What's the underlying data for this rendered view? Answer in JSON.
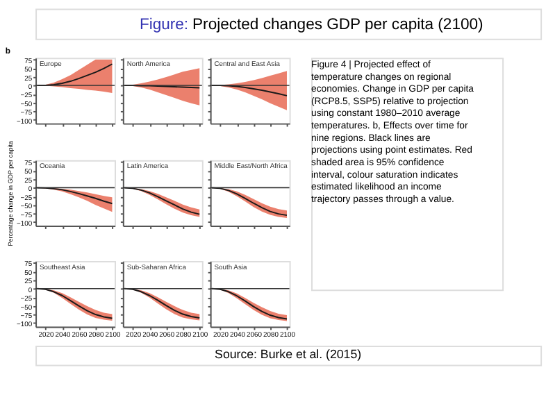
{
  "chart_data": [
    {
      "type": "other",
      "title": "Figure: Projected changes GDP per capita (2100)"
    },
    {
      "type": "line",
      "title": "Europe",
      "annotations": [
        "b"
      ],
      "x": [
        2010,
        2020,
        2030,
        2040,
        2050,
        2060,
        2070,
        2080,
        2090,
        2100
      ],
      "xlim": [
        2008,
        2103
      ],
      "xticks": [
        2020,
        2040,
        2060,
        2080,
        2100
      ],
      "ylim": [
        -110,
        80
      ],
      "yticks": [
        75,
        50,
        25,
        0,
        -25,
        -50,
        -75,
        -100
      ],
      "tick_labels": "y",
      "ref_lines": [
        {
          "axis": "y",
          "value": 0,
          "color": "#333333"
        }
      ],
      "series": [
        {
          "color": "#1a1a1a",
          "values": [
            0,
            0,
            2,
            6,
            12,
            20,
            29,
            38,
            49,
            62
          ],
          "lower": [
            0,
            -1,
            -3,
            -5,
            -8,
            -10,
            -13,
            -15,
            -18,
            -22
          ],
          "upper": [
            0,
            2,
            8,
            18,
            30,
            45,
            60,
            75,
            75,
            75
          ]
        }
      ]
    },
    {
      "type": "line",
      "title": "North America",
      "x": [
        2010,
        2020,
        2030,
        2040,
        2050,
        2060,
        2070,
        2080,
        2090,
        2100
      ],
      "xlim": [
        2008,
        2103
      ],
      "xticks": [
        2020,
        2040,
        2060,
        2080,
        2100
      ],
      "ylim": [
        -110,
        80
      ],
      "yticks": [
        75,
        50,
        25,
        0,
        -25,
        -50,
        -75,
        -100
      ],
      "tick_labels": false,
      "ref_lines": [
        {
          "axis": "y",
          "value": 0,
          "color": "#333333"
        }
      ],
      "series": [
        {
          "color": "#1a1a1a",
          "values": [
            0,
            0,
            -1,
            -1,
            -2,
            -3,
            -4,
            -5,
            -6,
            -7
          ],
          "lower": [
            0,
            -2,
            -6,
            -12,
            -20,
            -28,
            -36,
            -45,
            -52,
            -58
          ],
          "upper": [
            0,
            2,
            6,
            11,
            17,
            24,
            32,
            40,
            45,
            50
          ]
        }
      ]
    },
    {
      "type": "line",
      "title": "Central and East Asia",
      "x": [
        2010,
        2020,
        2030,
        2040,
        2050,
        2060,
        2070,
        2080,
        2090,
        2100
      ],
      "xlim": [
        2008,
        2103
      ],
      "xticks": [
        2020,
        2040,
        2060,
        2080,
        2100
      ],
      "ylim": [
        -110,
        80
      ],
      "yticks": [
        75,
        50,
        25,
        0,
        -25,
        -50,
        -75,
        -100
      ],
      "tick_labels": false,
      "ref_lines": [
        {
          "axis": "y",
          "value": 0,
          "color": "#333333"
        }
      ],
      "series": [
        {
          "color": "#1a1a1a",
          "values": [
            0,
            0,
            -1,
            -3,
            -6,
            -10,
            -14,
            -19,
            -24,
            -30
          ],
          "lower": [
            0,
            -2,
            -6,
            -12,
            -20,
            -30,
            -40,
            -52,
            -62,
            -72
          ],
          "upper": [
            0,
            1,
            3,
            6,
            10,
            15,
            21,
            28,
            35,
            42
          ]
        }
      ]
    },
    {
      "type": "line",
      "title": "Oceania",
      "ylabel": "Percentage change in GDP per capita",
      "x": [
        2010,
        2020,
        2030,
        2040,
        2050,
        2060,
        2070,
        2080,
        2090,
        2100
      ],
      "xlim": [
        2008,
        2103
      ],
      "xticks": [
        2020,
        2040,
        2060,
        2080,
        2100
      ],
      "ylim": [
        -110,
        80
      ],
      "yticks": [
        75,
        50,
        25,
        0,
        -25,
        -50,
        -75,
        -100
      ],
      "tick_labels": "y",
      "ref_lines": [
        {
          "axis": "y",
          "value": 0,
          "color": "#333333"
        }
      ],
      "series": [
        {
          "color": "#1a1a1a",
          "values": [
            0,
            -1,
            -3,
            -6,
            -11,
            -17,
            -24,
            -31,
            -39,
            -46
          ],
          "lower": [
            0,
            -2,
            -6,
            -11,
            -19,
            -28,
            -38,
            -50,
            -60,
            -70
          ],
          "upper": [
            0,
            0,
            -1,
            -3,
            -6,
            -10,
            -14,
            -19,
            -24,
            -28
          ]
        }
      ]
    },
    {
      "type": "line",
      "title": "Latin America",
      "x": [
        2010,
        2020,
        2030,
        2040,
        2050,
        2060,
        2070,
        2080,
        2090,
        2100
      ],
      "xlim": [
        2008,
        2103
      ],
      "xticks": [
        2020,
        2040,
        2060,
        2080,
        2100
      ],
      "ylim": [
        -110,
        80
      ],
      "yticks": [
        75,
        50,
        25,
        0,
        -25,
        -50,
        -75,
        -100
      ],
      "tick_labels": false,
      "ref_lines": [
        {
          "axis": "y",
          "value": 0,
          "color": "#333333"
        }
      ],
      "series": [
        {
          "color": "#1a1a1a",
          "values": [
            0,
            -2,
            -7,
            -15,
            -26,
            -38,
            -50,
            -62,
            -71,
            -77
          ],
          "lower": [
            0,
            -3,
            -10,
            -21,
            -34,
            -48,
            -61,
            -72,
            -80,
            -85
          ],
          "upper": [
            0,
            -1,
            -4,
            -10,
            -18,
            -28,
            -38,
            -49,
            -57,
            -63
          ]
        }
      ]
    },
    {
      "type": "line",
      "title": "Middle East/North Africa",
      "x": [
        2010,
        2020,
        2030,
        2040,
        2050,
        2060,
        2070,
        2080,
        2090,
        2100
      ],
      "xlim": [
        2008,
        2103
      ],
      "xticks": [
        2020,
        2040,
        2060,
        2080,
        2100
      ],
      "ylim": [
        -110,
        80
      ],
      "yticks": [
        75,
        50,
        25,
        0,
        -25,
        -50,
        -75,
        -100
      ],
      "tick_labels": false,
      "ref_lines": [
        {
          "axis": "y",
          "value": 0,
          "color": "#333333"
        }
      ],
      "series": [
        {
          "color": "#1a1a1a",
          "values": [
            0,
            -2,
            -8,
            -18,
            -31,
            -45,
            -58,
            -69,
            -76,
            -80
          ],
          "lower": [
            0,
            -3,
            -12,
            -25,
            -40,
            -56,
            -69,
            -79,
            -85,
            -88
          ],
          "upper": [
            0,
            -1,
            -4,
            -11,
            -21,
            -33,
            -45,
            -55,
            -62,
            -66
          ]
        }
      ]
    },
    {
      "type": "line",
      "title": "Southeast Asia",
      "x": [
        2010,
        2020,
        2030,
        2040,
        2050,
        2060,
        2070,
        2080,
        2090,
        2100
      ],
      "xlim": [
        2008,
        2103
      ],
      "xticks": [
        2020,
        2040,
        2060,
        2080,
        2100
      ],
      "ylim": [
        -110,
        80
      ],
      "yticks": [
        75,
        50,
        25,
        0,
        -25,
        -50,
        -75,
        -100
      ],
      "ref_lines": [
        {
          "axis": "y",
          "value": 0,
          "color": "#333333"
        }
      ],
      "series": [
        {
          "color": "#1a1a1a",
          "values": [
            0,
            -2,
            -9,
            -20,
            -35,
            -50,
            -64,
            -75,
            -82,
            -86
          ],
          "lower": [
            0,
            -3,
            -12,
            -27,
            -44,
            -61,
            -75,
            -85,
            -90,
            -93
          ],
          "upper": [
            0,
            -1,
            -5,
            -13,
            -25,
            -38,
            -51,
            -62,
            -70,
            -74
          ]
        }
      ]
    },
    {
      "type": "line",
      "title": "Sub-Saharan Africa",
      "x": [
        2010,
        2020,
        2030,
        2040,
        2050,
        2060,
        2070,
        2080,
        2090,
        2100
      ],
      "xlim": [
        2008,
        2103
      ],
      "xticks": [
        2020,
        2040,
        2060,
        2080,
        2100
      ],
      "ylim": [
        -110,
        80
      ],
      "yticks": [
        75,
        50,
        25,
        0,
        -25,
        -50,
        -75,
        -100
      ],
      "tick_labels": "x",
      "ref_lines": [
        {
          "axis": "y",
          "value": 0,
          "color": "#333333"
        }
      ],
      "series": [
        {
          "color": "#1a1a1a",
          "values": [
            0,
            -2,
            -9,
            -20,
            -34,
            -49,
            -63,
            -74,
            -81,
            -85
          ],
          "lower": [
            0,
            -3,
            -12,
            -26,
            -43,
            -60,
            -74,
            -84,
            -89,
            -92
          ],
          "upper": [
            0,
            -1,
            -5,
            -13,
            -25,
            -38,
            -51,
            -62,
            -70,
            -74
          ]
        }
      ]
    },
    {
      "type": "line",
      "title": "South Asia",
      "x": [
        2010,
        2020,
        2030,
        2040,
        2050,
        2060,
        2070,
        2080,
        2090,
        2100
      ],
      "xlim": [
        2008,
        2103
      ],
      "xticks": [
        2020,
        2040,
        2060,
        2080,
        2100
      ],
      "ylim": [
        -110,
        80
      ],
      "yticks": [
        75,
        50,
        25,
        0,
        -25,
        -50,
        -75,
        -100
      ],
      "tick_labels": "x",
      "ref_lines": [
        {
          "axis": "y",
          "value": 0,
          "color": "#333333"
        }
      ],
      "series": [
        {
          "color": "#1a1a1a",
          "values": [
            0,
            -2,
            -9,
            -21,
            -36,
            -52,
            -66,
            -77,
            -84,
            -88
          ],
          "lower": [
            0,
            -3,
            -13,
            -28,
            -45,
            -62,
            -76,
            -86,
            -91,
            -94
          ],
          "upper": [
            0,
            -1,
            -5,
            -14,
            -27,
            -41,
            -54,
            -65,
            -73,
            -77
          ]
        }
      ]
    },
    {
      "type": "other",
      "annotations": [
        "Figure 4 | Projected effect of temperature changes on regional economies. Change in GDP per capita (RCP8.5, SSP5) relative to projection using constant 1980–2010 average temperatures. b, Effects over time for nine regions. Black lines are projections using point estimates. Red shaded area is 95% confidence interval, colour saturation indicates estimated likelihood an income trajectory passes through a value."
      ]
    },
    {
      "type": "other",
      "annotations": [
        "Source: Burke et al. (2015)"
      ]
    }
  ]
}
